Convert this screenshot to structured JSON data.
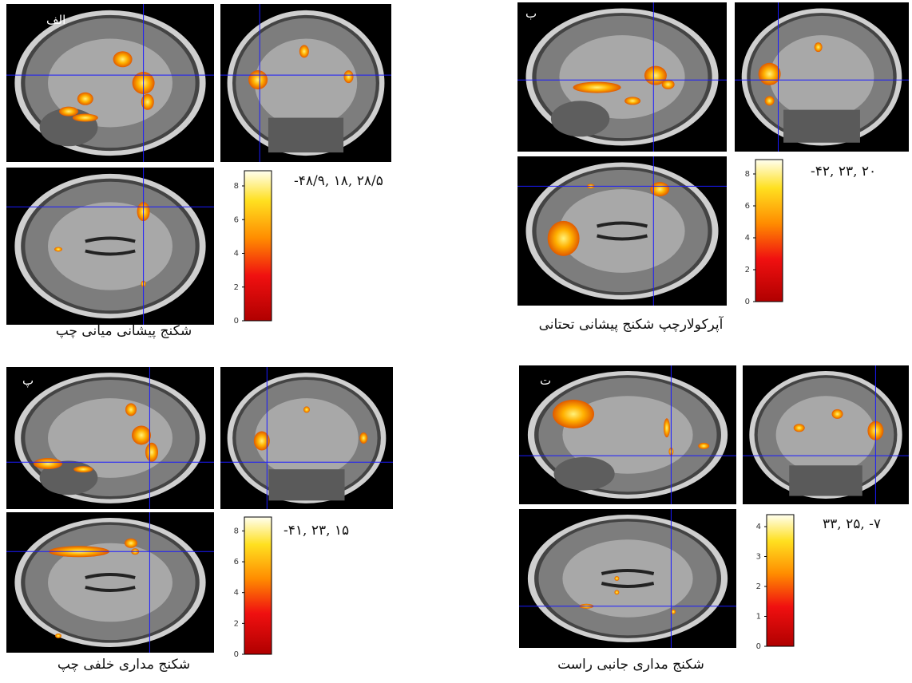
{
  "panels": [
    {
      "label": "الف",
      "coordinates": "-۴۸/۹, ۱۸, ۲۸/۵",
      "caption": "شکنج پیشانی میانی چپ",
      "colorbar_lim": [
        0,
        8.9
      ],
      "colorbar_ticks": [
        0,
        2,
        4,
        6,
        8
      ]
    },
    {
      "label": "ب",
      "coordinates": "-۴۲, ۲۳, ۲۰",
      "caption": "آپرکولارچپ شکنج پیشانی تحتانی",
      "colorbar_lim": [
        0,
        8.9
      ],
      "colorbar_ticks": [
        0,
        2,
        4,
        6,
        8
      ]
    },
    {
      "label": "پ",
      "coordinates": "-۴۱, ۲۳, ۱۵",
      "caption": "شکنج مداری خلفی چپ",
      "colorbar_lim": [
        0,
        8.9
      ],
      "colorbar_ticks": [
        0,
        2,
        4,
        6,
        8
      ]
    },
    {
      "label": "ت",
      "coordinates": "۳۳, ۲۵, -۷",
      "caption": "شکنج مداری جانبی راست",
      "colorbar_lim": [
        0,
        4.4
      ],
      "colorbar_ticks": [
        0,
        1,
        2,
        3,
        4
      ]
    }
  ]
}
